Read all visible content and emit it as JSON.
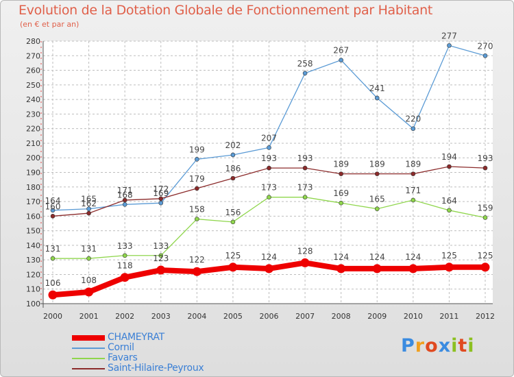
{
  "chart_data": {
    "type": "line",
    "title": "Evolution de la Dotation Globale de Fonctionnement par Habitant",
    "subtitle": "(en € et par an)",
    "xlabel": "",
    "ylabel": "",
    "ylim": [
      100,
      280
    ],
    "yticks": [
      100,
      110,
      120,
      130,
      140,
      150,
      160,
      170,
      180,
      190,
      200,
      210,
      220,
      230,
      240,
      250,
      260,
      270,
      280
    ],
    "grid": true,
    "categories": [
      "2000",
      "2001",
      "2002",
      "2003",
      "2004",
      "2005",
      "2006",
      "2007",
      "2008",
      "2009",
      "2010",
      "2011",
      "2012"
    ],
    "series": [
      {
        "name": "CHAMEYRAT",
        "color": "#ee0000",
        "highlight": true,
        "values": [
          106,
          108,
          118,
          123,
          122,
          125,
          124,
          128,
          124,
          124,
          124,
          125,
          125
        ]
      },
      {
        "name": "Cornil",
        "color": "#5b9bd5",
        "highlight": false,
        "values": [
          164,
          165,
          168,
          169,
          199,
          202,
          207,
          258,
          267,
          241,
          220,
          277,
          270
        ]
      },
      {
        "name": "Favars",
        "color": "#8fd64c",
        "highlight": false,
        "values": [
          131,
          131,
          133,
          133,
          158,
          156,
          173,
          173,
          169,
          165,
          171,
          164,
          159
        ]
      },
      {
        "name": "Saint-Hilaire-Peyroux",
        "color": "#8b2a2a",
        "highlight": false,
        "values": [
          160,
          162,
          171,
          172,
          179,
          186,
          193,
          193,
          189,
          189,
          189,
          194,
          193
        ]
      }
    ],
    "data_labels": {
      "CHAMEYRAT": [
        "106",
        "108",
        "118",
        "123",
        "122",
        "125",
        "124",
        "128",
        "124",
        "124",
        "124",
        "125",
        "125"
      ],
      "Cornil": [
        "164",
        "165",
        "168",
        "169",
        "199",
        "202",
        "207",
        "258",
        "267",
        "241",
        "220",
        "277",
        "270"
      ],
      "Favars": [
        "131",
        "131",
        "133",
        "133",
        "158",
        "156",
        "173",
        "173",
        "169",
        "165",
        "171",
        "164",
        "159"
      ],
      "Saint-Hilaire-Peyroux": [
        "160",
        "162",
        "171",
        "172",
        "179",
        "186",
        "193",
        "193",
        "189",
        "189",
        "189",
        "194",
        "193"
      ]
    },
    "legend_position": "bottom-left"
  },
  "logo": {
    "text": "Proxiti",
    "letters": [
      "P",
      "r",
      "o",
      "x",
      "i",
      "t",
      "i"
    ]
  }
}
